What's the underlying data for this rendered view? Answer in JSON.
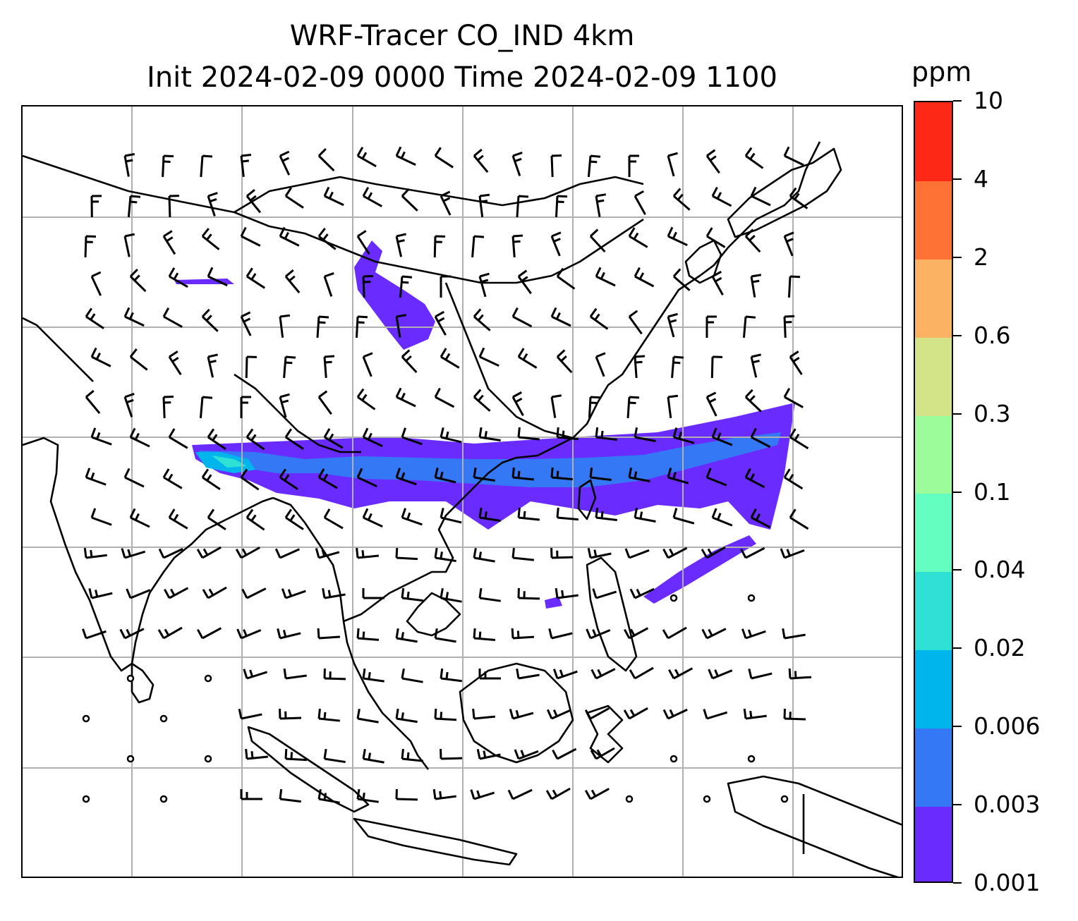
{
  "title": {
    "line1": "WRF-Tracer CO_IND 4km",
    "line2": "Init 2024-02-09 0000 Time 2024-02-09 1100"
  },
  "colorbar": {
    "unit": "ppm",
    "levels": [
      "0.001",
      "0.003",
      "0.006",
      "0.02",
      "0.04",
      "0.1",
      "0.3",
      "0.6",
      "2",
      "4",
      "10"
    ],
    "colors": [
      "#6a2bff",
      "#3478f5",
      "#00b4ec",
      "#2fe0d4",
      "#64ffc0",
      "#9cfc9a",
      "#d2e388",
      "#fbb263",
      "#ff7236",
      "#fe2816"
    ]
  },
  "map": {
    "gridlines": true,
    "coastline_color": "#000000",
    "grid_color": "#b0b0b0",
    "wind_barbs": true,
    "plume_description_colors": {
      "low": "#6a2bff",
      "mid": "#3478f5",
      "high": "#00b4ec",
      "peak": "#2fe0d4"
    }
  }
}
